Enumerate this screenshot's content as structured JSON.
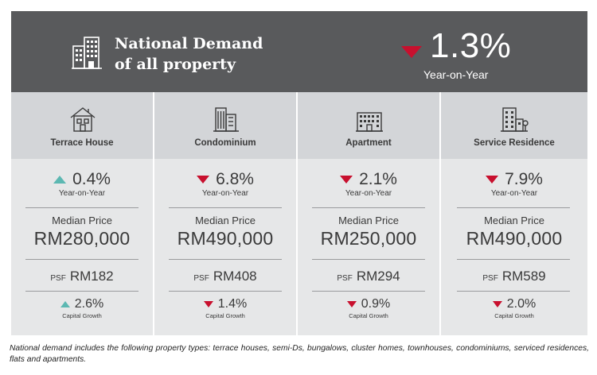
{
  "header": {
    "title_line1": "National Demand",
    "title_line2": "of all property",
    "change_value": "1.3%",
    "change_direction": "down",
    "change_label": "Year-on-Year",
    "icon": "buildings-icon"
  },
  "colors": {
    "header_bg": "#595a5c",
    "up": "#5cb8b2",
    "down": "#c8102e",
    "panel_head": "#d3d5d8",
    "panel_body": "#e6e7e8"
  },
  "properties": [
    {
      "label": "Terrace House",
      "icon": "house-icon",
      "yoy_direction": "up",
      "yoy_value": "0.4%",
      "yoy_label": "Year-on-Year",
      "median_label": "Median Price",
      "median_value": "RM280,000",
      "psf_tag": "PSF",
      "psf_value": "RM182",
      "capital_direction": "up",
      "capital_value": "2.6%",
      "capital_label": "Capital Growth"
    },
    {
      "label": "Condominium",
      "icon": "condominium-icon",
      "yoy_direction": "down",
      "yoy_value": "6.8%",
      "yoy_label": "Year-on-Year",
      "median_label": "Median Price",
      "median_value": "RM490,000",
      "psf_tag": "PSF",
      "psf_value": "RM408",
      "capital_direction": "down",
      "capital_value": "1.4%",
      "capital_label": "Capital Growth"
    },
    {
      "label": "Apartment",
      "icon": "apartment-icon",
      "yoy_direction": "down",
      "yoy_value": "2.1%",
      "yoy_label": "Year-on-Year",
      "median_label": "Median Price",
      "median_value": "RM250,000",
      "psf_tag": "PSF",
      "psf_value": "RM294",
      "capital_direction": "down",
      "capital_value": "0.9%",
      "capital_label": "Capital Growth"
    },
    {
      "label": "Service Residence",
      "icon": "service-residence-icon",
      "yoy_direction": "down",
      "yoy_value": "7.9%",
      "yoy_label": "Year-on-Year",
      "median_label": "Median Price",
      "median_value": "RM490,000",
      "psf_tag": "PSF",
      "psf_value": "RM589",
      "capital_direction": "down",
      "capital_value": "2.0%",
      "capital_label": "Capital Growth"
    }
  ],
  "footnote": "National demand includes the following property types: terrace houses, semi-Ds, bungalows, cluster homes, townhouses, condominiums, serviced residences, flats and apartments."
}
